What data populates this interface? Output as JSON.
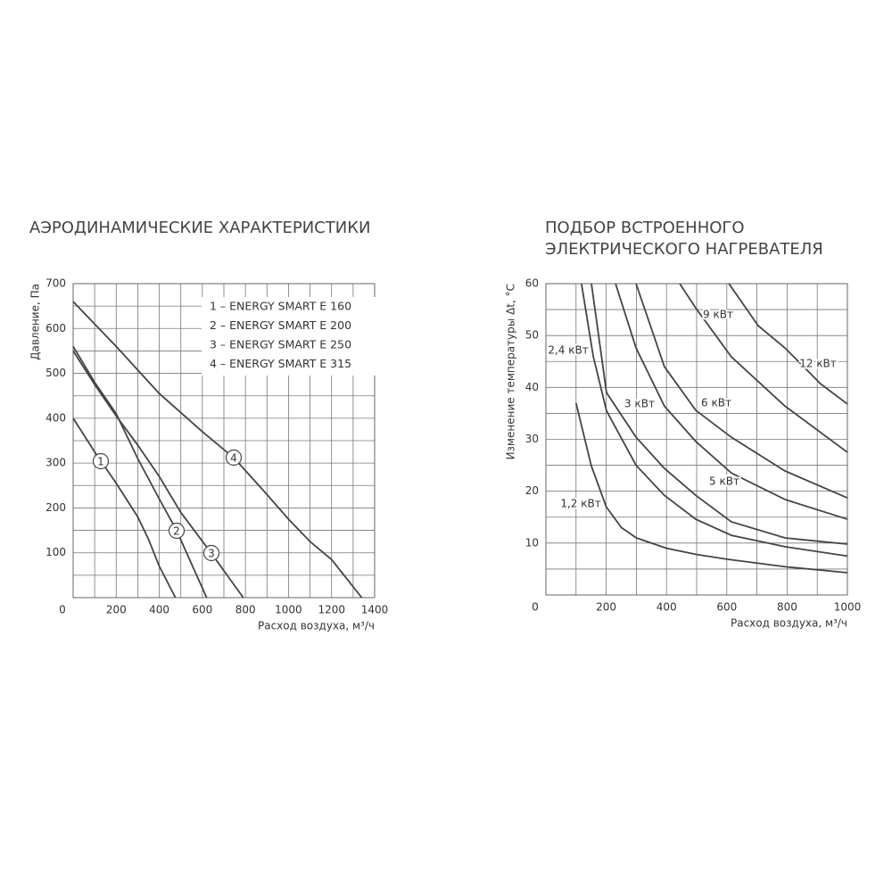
{
  "chart_data": [
    {
      "type": "line",
      "title": "АЭРОДИНАМИЧЕСКИЕ ХАРАКТЕРИСТИКИ",
      "ylabel": "Давление, Па",
      "xlabel": "Расход воздуха, м³/ч",
      "xlim": [
        0,
        1400
      ],
      "xticks": [
        0,
        200,
        400,
        600,
        800,
        1000,
        1200,
        1400
      ],
      "ylim": [
        0,
        700
      ],
      "yticks": [
        100,
        200,
        300,
        400,
        500,
        600,
        700
      ],
      "grid": true,
      "grid_subdivisions": 2,
      "color": "#444444",
      "legend": "upper right",
      "series": [
        {
          "name": "1 – ENERGY SMART E 160",
          "marker_label": "1",
          "x": [
            0,
            100,
            200,
            300,
            350,
            400,
            475
          ],
          "values": [
            400,
            325,
            255,
            180,
            130,
            70,
            0
          ]
        },
        {
          "name": "2 – ENERGY SMART E 200",
          "marker_label": "2",
          "x": [
            0,
            100,
            200,
            300,
            400,
            480,
            550,
            620
          ],
          "values": [
            560,
            480,
            410,
            310,
            220,
            150,
            75,
            0
          ]
        },
        {
          "name": "3 – ENERGY SMART E 250",
          "marker_label": "3",
          "x": [
            0,
            100,
            200,
            300,
            400,
            500,
            640,
            790
          ],
          "values": [
            550,
            475,
            405,
            340,
            270,
            190,
            100,
            0
          ]
        },
        {
          "name": "4 – ENERGY SMART E 315",
          "marker_label": "4",
          "x": [
            0,
            200,
            400,
            600,
            750,
            900,
            1000,
            1100,
            1200,
            1340
          ],
          "values": [
            660,
            560,
            455,
            370,
            310,
            230,
            175,
            125,
            85,
            0
          ]
        }
      ]
    },
    {
      "type": "line",
      "title": [
        "ПОДБОР ВСТРОЕННОГО",
        "ЭЛЕКТРИЧЕСКОГО НАГРЕВАТЕЛЯ"
      ],
      "ylabel": "Изменение температуры Δt, °С",
      "xlabel": "Расход воздуха, м³/ч",
      "xlim": [
        0,
        1000
      ],
      "xticks": [
        0,
        200,
        400,
        600,
        800,
        1000
      ],
      "ylim": [
        0,
        60
      ],
      "yticks": [
        10,
        20,
        30,
        40,
        50,
        60
      ],
      "grid": true,
      "grid_subdivisions": 2,
      "color": "#444444",
      "series": [
        {
          "name": "1,2 кВт",
          "x": [
            100,
            150,
            200,
            250,
            300,
            400,
            500,
            600,
            800,
            1000
          ],
          "values": [
            37,
            25,
            17,
            13,
            11,
            9,
            7.8,
            6.9,
            5.4,
            4.3
          ]
        },
        {
          "name": "2,4 кВт",
          "x": [
            118,
            157,
            201,
            299,
            393,
            497,
            615,
            793,
            1000
          ],
          "values": [
            60,
            46,
            35.5,
            25,
            19.2,
            14.6,
            11.5,
            9.3,
            7.5
          ]
        },
        {
          "name": "3 кВт",
          "x": [
            151,
            201,
            299,
            393,
            497,
            615,
            793,
            1000
          ],
          "values": [
            60,
            39,
            30.4,
            24.4,
            19.2,
            14.1,
            11,
            9.8
          ]
        },
        {
          "name": "5 кВт",
          "x": [
            231,
            299,
            393,
            497,
            615,
            793,
            1000
          ],
          "values": [
            60,
            47.6,
            36.4,
            29.6,
            23.5,
            18.4,
            14.6
          ]
        },
        {
          "name": "6 кВт",
          "x": [
            299,
            393,
            497,
            615,
            793,
            1000
          ],
          "values": [
            60,
            44,
            35.6,
            30.4,
            23.9,
            18.7
          ]
        },
        {
          "name": "9 кВт",
          "x": [
            444,
            497,
            615,
            793,
            1000
          ],
          "values": [
            60,
            55.3,
            45.9,
            36.4,
            27.5
          ]
        },
        {
          "name": "12 кВт",
          "x": [
            607,
            704,
            793,
            911,
            1000
          ],
          "values": [
            60,
            51.9,
            47.6,
            40.7,
            36.8
          ]
        }
      ]
    }
  ]
}
